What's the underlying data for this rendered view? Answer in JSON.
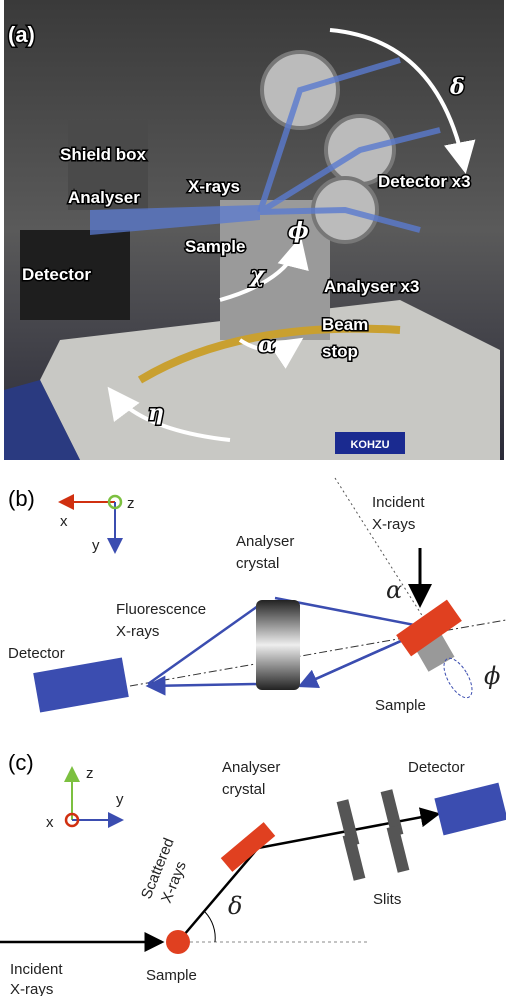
{
  "panels": {
    "a": {
      "label": "(a)",
      "shield_box": "Shield box",
      "analyser": "Analyser",
      "xrays": "X-rays",
      "sample": "Sample",
      "detector": "Detector",
      "detector_x3": "Detector x3",
      "analyser_x3": "Analyser x3",
      "beam_stop": [
        "Beam",
        "stop"
      ],
      "delta": "δ",
      "phi": "ϕ",
      "chi": "χ",
      "alpha": "α",
      "eta": "η",
      "brand": "KOHZU"
    },
    "b": {
      "label": "(b)",
      "axis_z": "z",
      "axis_x": "x",
      "axis_y": "y",
      "incident": [
        "Incident",
        "X-rays"
      ],
      "analyser": [
        "Analyser",
        "crystal"
      ],
      "fluorescence": [
        "Fluorescence",
        "X-rays"
      ],
      "detector": "Detector",
      "sample": "Sample",
      "alpha": "α",
      "phi": "ϕ"
    },
    "c": {
      "label": "(c)",
      "axis_z": "z",
      "axis_y": "y",
      "axis_x": "x",
      "analyser": [
        "Analyser",
        "crystal"
      ],
      "detector": "Detector",
      "scattered": [
        "Scattered",
        "X-rays"
      ],
      "slits": "Slits",
      "delta": "δ",
      "incident": [
        "Incident",
        "X-rays"
      ],
      "sample": "Sample"
    }
  }
}
